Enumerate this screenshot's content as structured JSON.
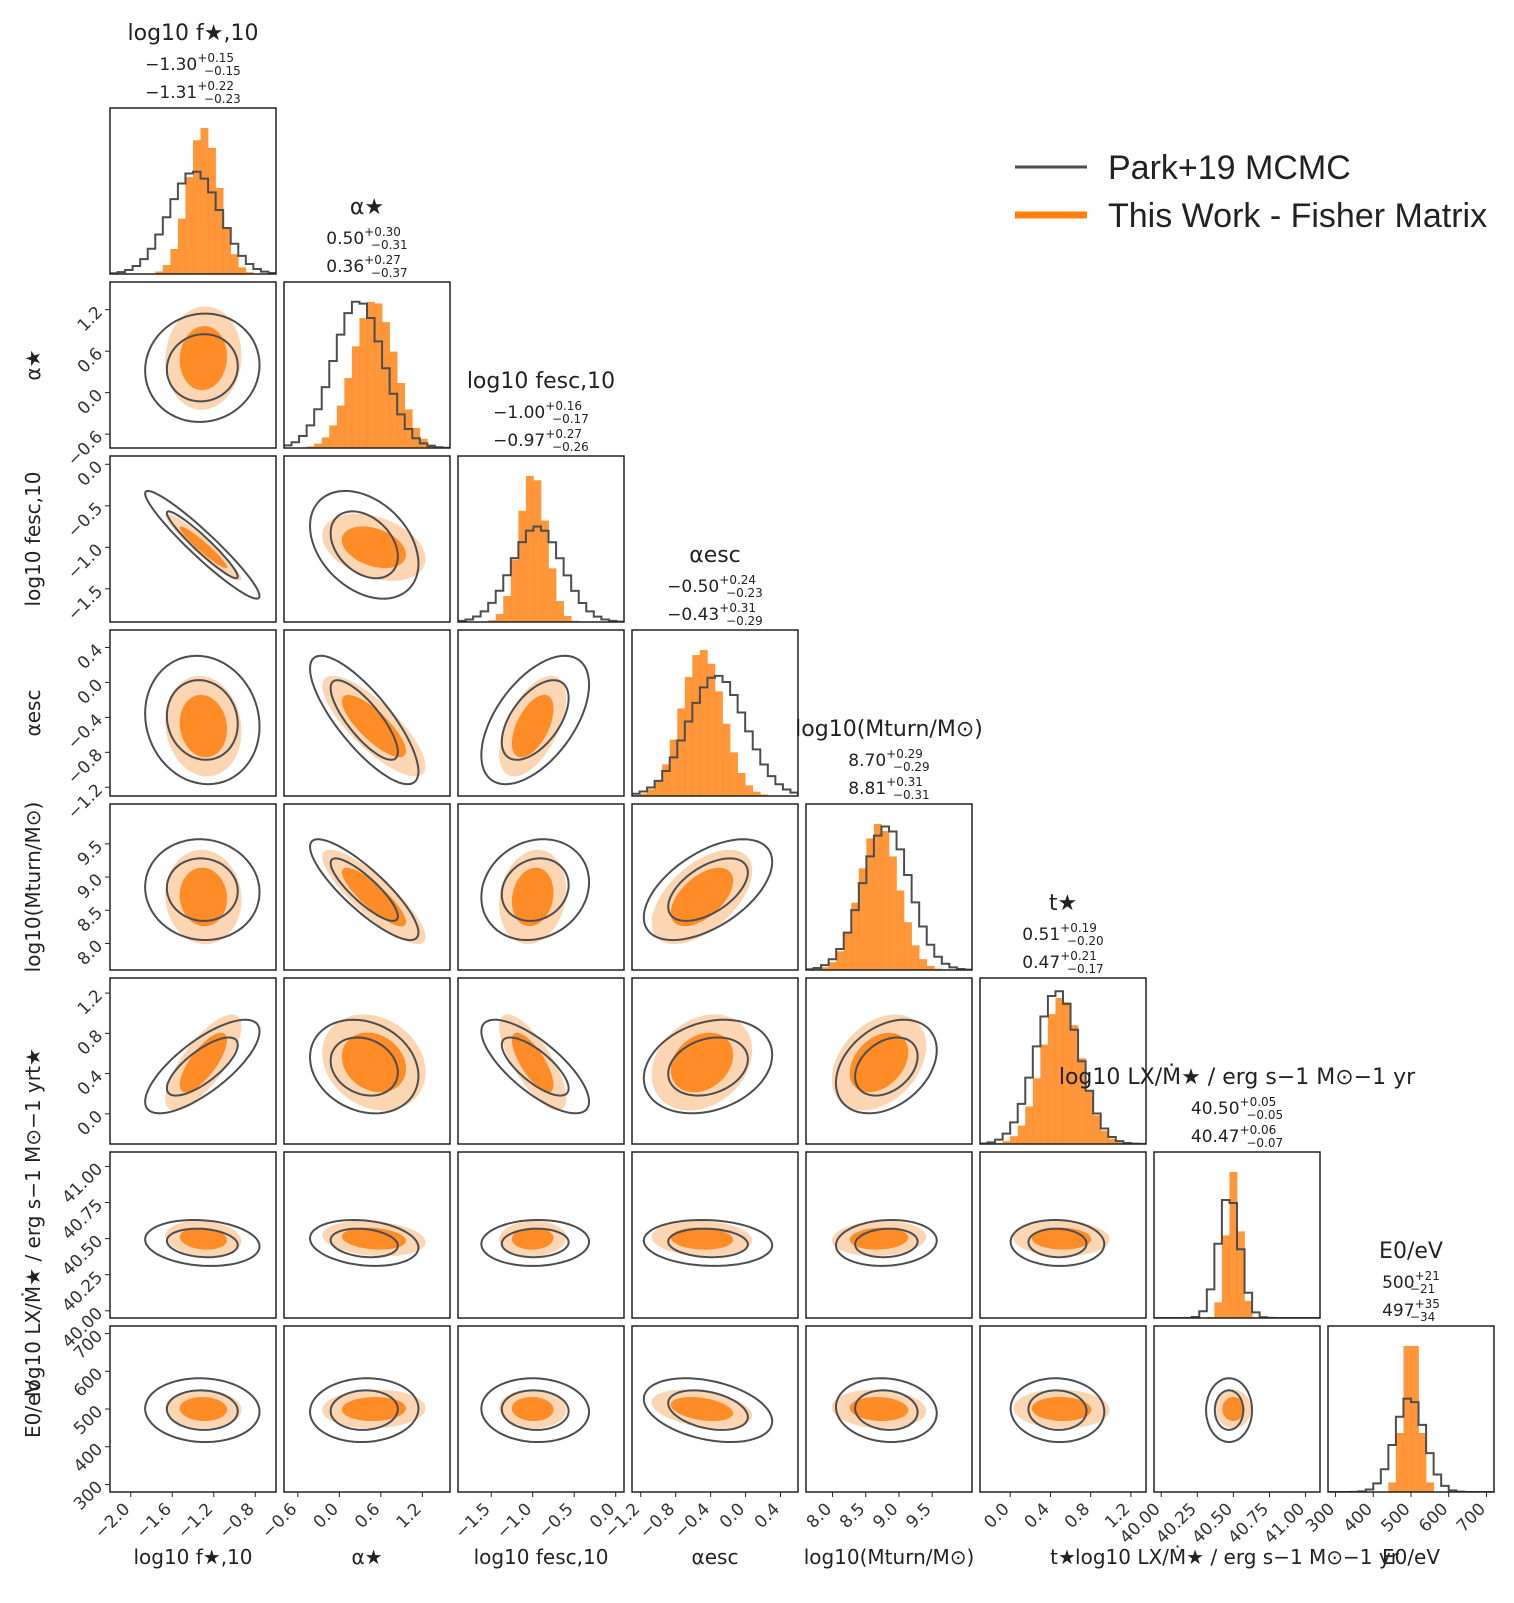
{
  "legend": {
    "entries": [
      {
        "label": "Park+19 MCMC",
        "color": "#4d4d4d"
      },
      {
        "label": "This Work - Fisher Matrix",
        "color": "#ff7f0e"
      }
    ]
  },
  "colors": {
    "mcmc": "#4d4d4d",
    "fisher": "#ff7f0e",
    "fisher_light": "#fbc79a"
  },
  "chart_data": {
    "type": "corner",
    "parameters": [
      {
        "label": "log10 f★,10",
        "ticks": [
          -2.0,
          -1.6,
          -1.2,
          -0.8
        ],
        "tick_labels": [
          "−2.0",
          "−1.6",
          "−1.2",
          "−0.8"
        ],
        "range": [
          -2.2,
          -0.6
        ],
        "fisher": {
          "median": "−1.30",
          "plus": "+0.15",
          "minus": "−0.15"
        },
        "mcmc": {
          "median": "−1.31",
          "plus": "+0.22",
          "minus": "−0.23"
        },
        "fisher_value": -1.3,
        "fisher_sigma": 0.15,
        "mcmc_value": -1.31,
        "mcmc_sigma": 0.225,
        "mcmc_skew": -0.4
      },
      {
        "label": "α★",
        "ticks": [
          -0.6,
          0.0,
          0.6,
          1.2
        ],
        "tick_labels": [
          "−0.6",
          "0.0",
          "0.6",
          "1.2"
        ],
        "range": [
          -0.8,
          1.6
        ],
        "fisher": {
          "median": "0.50",
          "plus": "+0.30",
          "minus": "−0.31"
        },
        "mcmc": {
          "median": "0.36",
          "plus": "+0.27",
          "minus": "−0.37"
        },
        "fisher_value": 0.5,
        "fisher_sigma": 0.305,
        "mcmc_value": 0.36,
        "mcmc_sigma": 0.32,
        "mcmc_skew": -0.3
      },
      {
        "label": "log10 fesc,10",
        "ticks": [
          -1.5,
          -1.0,
          -0.5,
          0.0
        ],
        "tick_labels": [
          "−1.5",
          "−1.0",
          "−0.5",
          "0.0"
        ],
        "range": [
          -1.9,
          0.1
        ],
        "fisher": {
          "median": "−1.00",
          "plus": "+0.16",
          "minus": "−0.17"
        },
        "mcmc": {
          "median": "−0.97",
          "plus": "+0.27",
          "minus": "−0.26"
        },
        "fisher_value": -1.0,
        "fisher_sigma": 0.165,
        "mcmc_value": -0.97,
        "mcmc_sigma": 0.265,
        "mcmc_skew": 0.1
      },
      {
        "label": "αesc",
        "ticks": [
          -1.2,
          -0.8,
          -0.4,
          0.0,
          0.4
        ],
        "tick_labels": [
          "−1.2",
          "−0.8",
          "−0.4",
          "0.0",
          "0.4"
        ],
        "range": [
          -1.3,
          0.6
        ],
        "fisher": {
          "median": "−0.50",
          "plus": "+0.24",
          "minus": "−0.23"
        },
        "mcmc": {
          "median": "−0.43",
          "plus": "+0.31",
          "minus": "−0.29"
        },
        "fisher_value": -0.5,
        "fisher_sigma": 0.235,
        "mcmc_value": -0.43,
        "mcmc_sigma": 0.3,
        "mcmc_skew": 0.4
      },
      {
        "label": "log10(Mturn/M⊙)",
        "ticks": [
          8.0,
          8.5,
          9.0,
          9.5
        ],
        "tick_labels": [
          "8.0",
          "8.5",
          "9.0",
          "9.5"
        ],
        "range": [
          7.6,
          10.1
        ],
        "fisher": {
          "median": "8.70",
          "plus": "+0.29",
          "minus": "−0.29"
        },
        "mcmc": {
          "median": "8.81",
          "plus": "+0.31",
          "minus": "−0.31"
        },
        "fisher_value": 8.7,
        "fisher_sigma": 0.29,
        "mcmc_value": 8.81,
        "mcmc_sigma": 0.31,
        "mcmc_skew": 0.0
      },
      {
        "label": "t★",
        "ticks": [
          0.0,
          0.4,
          0.8,
          1.2
        ],
        "tick_labels": [
          "0.0",
          "0.4",
          "0.8",
          "1.2"
        ],
        "range": [
          -0.3,
          1.35
        ],
        "fisher": {
          "median": "0.51",
          "plus": "+0.19",
          "minus": "−0.20"
        },
        "mcmc": {
          "median": "0.47",
          "plus": "+0.21",
          "minus": "−0.17"
        },
        "fisher_value": 0.51,
        "fisher_sigma": 0.195,
        "mcmc_value": 0.47,
        "mcmc_sigma": 0.19,
        "mcmc_skew": 0.0
      },
      {
        "label": "log10 LX/Ṁ★ / erg s−1 M⊙−1 yr",
        "ticks": [
          40.0,
          40.25,
          40.5,
          40.75,
          41.0
        ],
        "tick_labels": [
          "40.00",
          "40.25",
          "40.50",
          "40.75",
          "41.00"
        ],
        "range": [
          39.95,
          41.1
        ],
        "fisher": {
          "median": "40.50",
          "plus": "+0.05",
          "minus": "−0.05"
        },
        "mcmc": {
          "median": "40.47",
          "plus": "+0.06",
          "minus": "−0.07"
        },
        "fisher_value": 40.5,
        "fisher_sigma": 0.05,
        "mcmc_value": 40.47,
        "mcmc_sigma": 0.065,
        "mcmc_skew": 0.0
      },
      {
        "label": "E0/eV",
        "ticks": [
          300,
          400,
          500,
          600,
          700
        ],
        "tick_labels": [
          "300",
          "400",
          "500",
          "600",
          "700"
        ],
        "range": [
          280,
          720
        ],
        "fisher": {
          "median": "500",
          "plus": "+21",
          "minus": "−21"
        },
        "mcmc": {
          "median": "497",
          "plus": "+35",
          "minus": "−34"
        },
        "fisher_value": 500,
        "fisher_sigma": 21,
        "mcmc_value": 497,
        "mcmc_sigma": 34.5,
        "mcmc_skew": 0.0
      }
    ],
    "correlations": [
      [
        1,
        0,
        0,
        0,
        0,
        0,
        0,
        0
      ],
      [
        0.05,
        1,
        0,
        0,
        0,
        0,
        0,
        0
      ],
      [
        -0.95,
        -0.35,
        1,
        0,
        0,
        0,
        0,
        0
      ],
      [
        -0.1,
        -0.8,
        0.55,
        1,
        0,
        0,
        0,
        0
      ],
      [
        -0.05,
        -0.85,
        0.15,
        0.55,
        1,
        0,
        0,
        0
      ],
      [
        0.75,
        -0.2,
        -0.75,
        0.25,
        0.35,
        1,
        0,
        0
      ],
      [
        -0.15,
        -0.2,
        0.05,
        -0.1,
        0.1,
        -0.05,
        1,
        0
      ],
      [
        -0.05,
        0.05,
        -0.05,
        -0.35,
        -0.1,
        -0.05,
        0,
        1
      ]
    ]
  }
}
